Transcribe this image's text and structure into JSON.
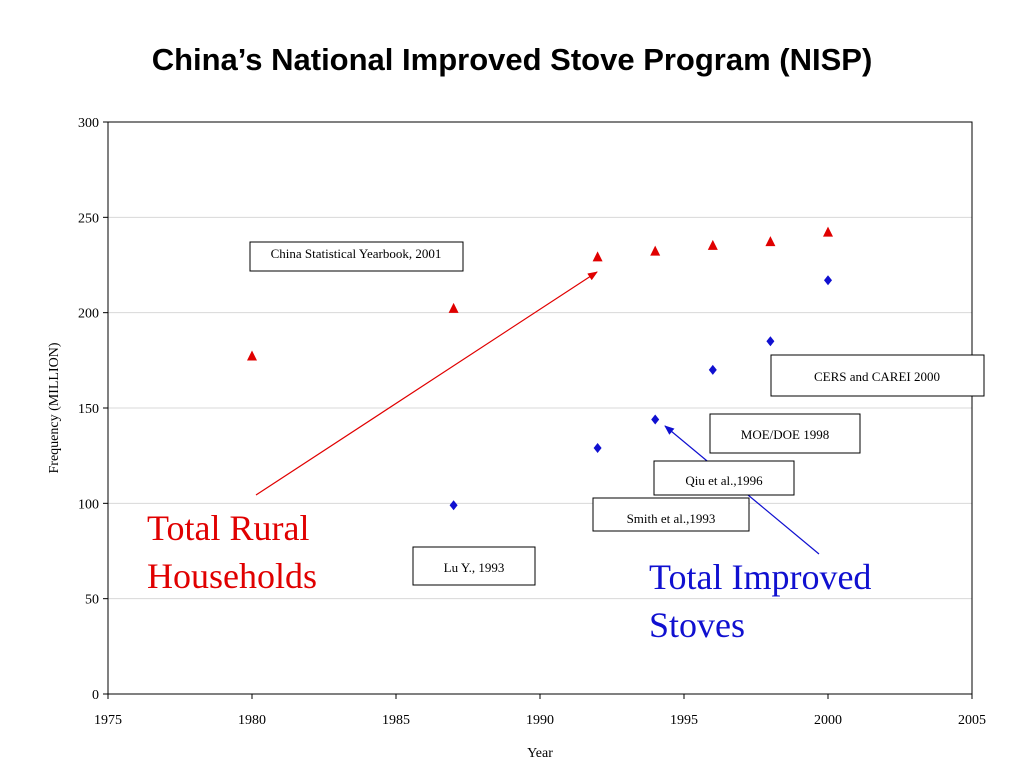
{
  "title": "China’s National Improved Stove Program (NISP)",
  "colors": {
    "red": "#e00000",
    "blue": "#1010d0"
  },
  "chart_data": {
    "type": "scatter",
    "xlabel": "Year",
    "ylabel": "Frequency (MILLION)",
    "xlim": [
      1975,
      2005
    ],
    "ylim": [
      0,
      300
    ],
    "xticks": [
      1975,
      1980,
      1985,
      1990,
      1995,
      2000,
      2005
    ],
    "yticks": [
      0,
      50,
      100,
      150,
      200,
      250,
      300
    ],
    "grid": true,
    "series": [
      {
        "name": "Total Rural Households",
        "color": "#e00000",
        "marker": "triangle",
        "points": [
          {
            "x": 1980,
            "y": 177
          },
          {
            "x": 1987,
            "y": 202
          },
          {
            "x": 1992,
            "y": 229
          },
          {
            "x": 1994,
            "y": 232
          },
          {
            "x": 1996,
            "y": 235
          },
          {
            "x": 1998,
            "y": 237
          },
          {
            "x": 2000,
            "y": 242
          }
        ]
      },
      {
        "name": "Total Improved Stoves",
        "color": "#1010d0",
        "marker": "diamond",
        "points": [
          {
            "x": 1987,
            "y": 99
          },
          {
            "x": 1992,
            "y": 129
          },
          {
            "x": 1994,
            "y": 144
          },
          {
            "x": 1996,
            "y": 170
          },
          {
            "x": 1998,
            "y": 185
          },
          {
            "x": 2000,
            "y": 217
          }
        ]
      }
    ],
    "annotations": {
      "source_boxes": [
        {
          "text": "China Statistical Yearbook, 2001"
        },
        {
          "text": "CERS and CAREI 2000"
        },
        {
          "text": "MOE/DOE 1998"
        },
        {
          "text": "Qiu et al.,1996"
        },
        {
          "text": "Smith et al.,1993"
        },
        {
          "text": "Lu Y., 1993"
        }
      ],
      "big_labels": [
        {
          "lines": [
            "Total Rural",
            "Households"
          ],
          "color": "#e00000"
        },
        {
          "lines": [
            "Total Improved",
            "Stoves"
          ],
          "color": "#1010d0"
        }
      ]
    }
  }
}
